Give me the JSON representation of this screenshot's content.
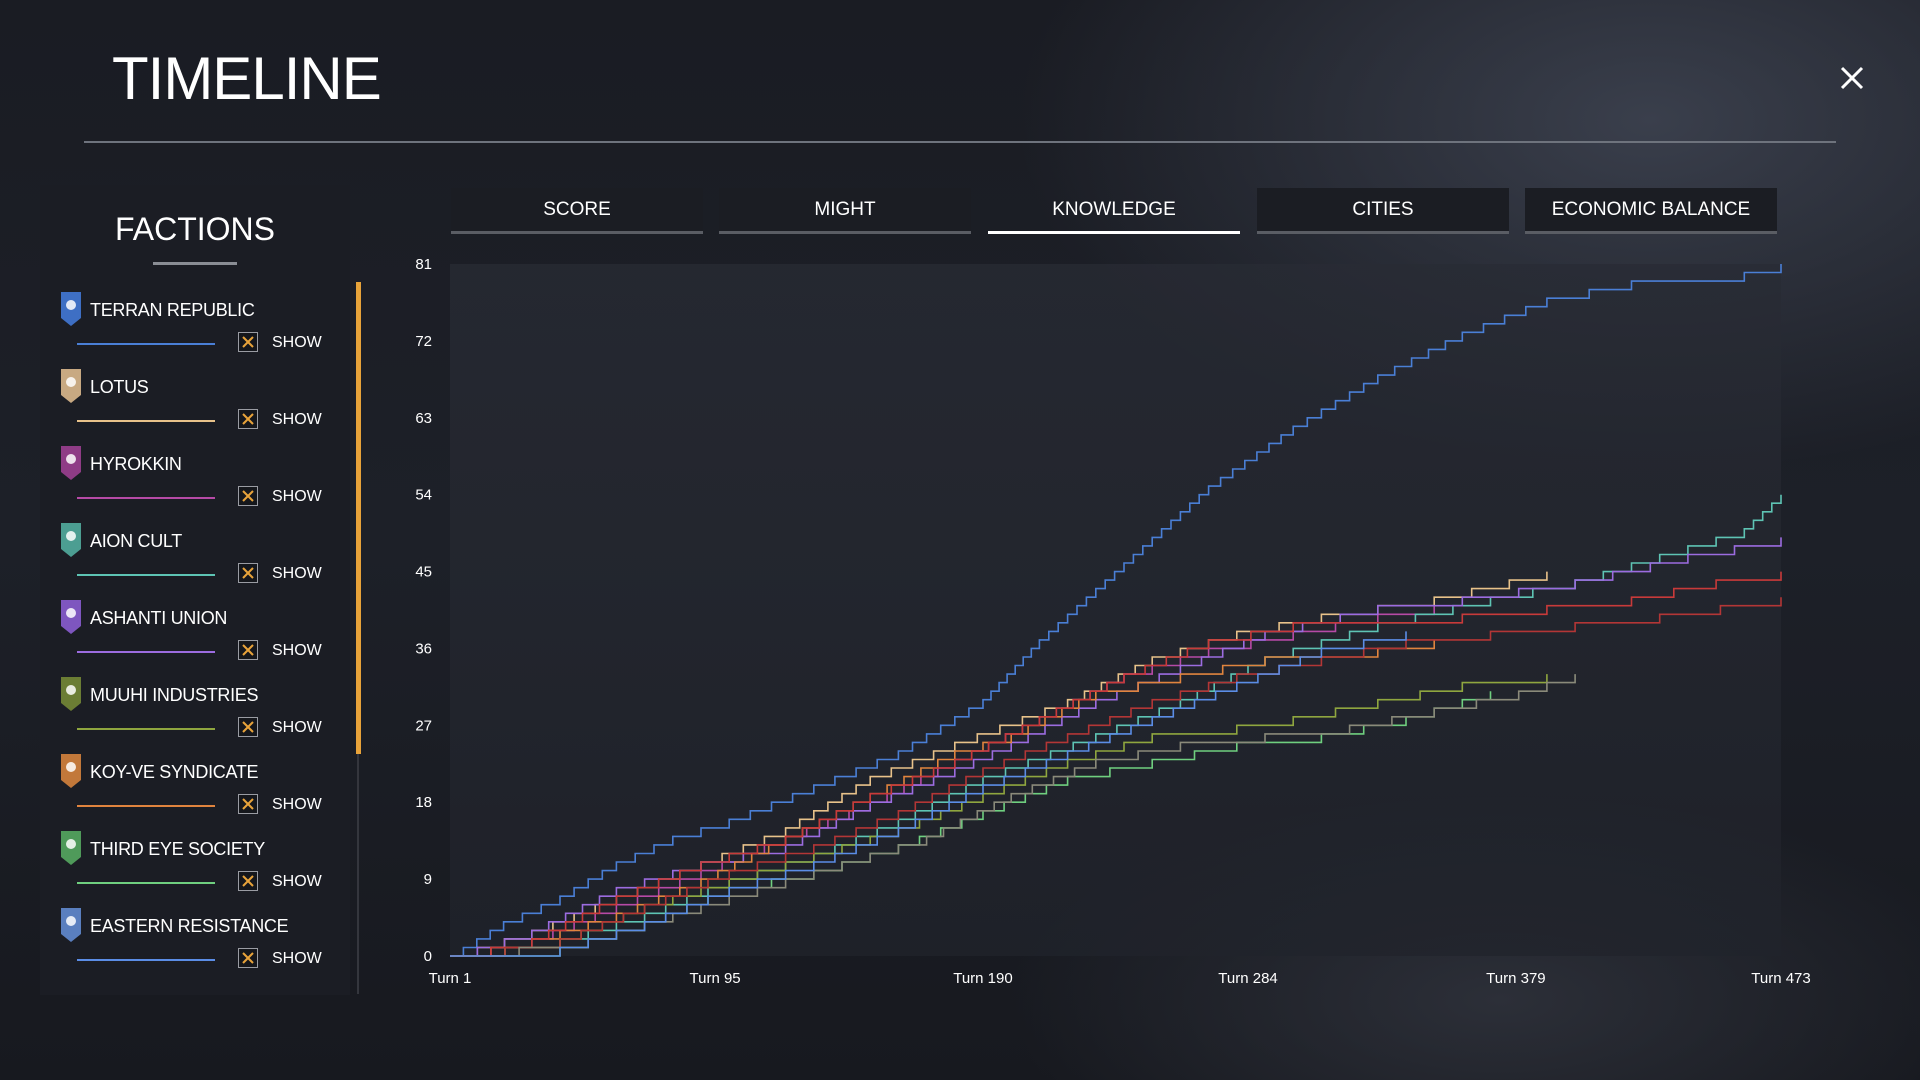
{
  "header": {
    "title": "TIMELINE",
    "close_icon": "close-icon"
  },
  "sidebar": {
    "title": "FACTIONS",
    "show_label": "SHOW",
    "factions": [
      {
        "name": "TERRAN REPUBLIC",
        "color": "#4a7fd6",
        "emblem_color": "#3e6fc4",
        "icon": "terran-emblem-icon",
        "show": true
      },
      {
        "name": "LOTUS",
        "color": "#e8c28a",
        "emblem_color": "#c8a982",
        "icon": "lotus-emblem-icon",
        "show": true
      },
      {
        "name": "HYROKKIN",
        "color": "#b64aa6",
        "emblem_color": "#8f3c86",
        "icon": "hyrokkin-emblem-icon",
        "show": true
      },
      {
        "name": "AION CULT",
        "color": "#5ec4b4",
        "emblem_color": "#4c9e92",
        "icon": "aion-emblem-icon",
        "show": true
      },
      {
        "name": "ASHANTI UNION",
        "color": "#9c6ce0",
        "emblem_color": "#7e56bf",
        "icon": "ashanti-emblem-icon",
        "show": true
      },
      {
        "name": "MUUHI INDUSTRIES",
        "color": "#8fa63f",
        "emblem_color": "#6b7d34",
        "icon": "muuhi-emblem-icon",
        "show": true
      },
      {
        "name": "KOY-VE SYNDICATE",
        "color": "#e0843e",
        "emblem_color": "#c2783a",
        "icon": "koyve-emblem-icon",
        "show": true
      },
      {
        "name": "THIRD EYE SOCIETY",
        "color": "#6fcf7f",
        "emblem_color": "#4f9a5a",
        "icon": "third-eye-emblem-icon",
        "show": true
      },
      {
        "name": "EASTERN RESISTANCE",
        "color": "#5b8de6",
        "emblem_color": "#5a7fbf",
        "icon": "eastern-emblem-icon",
        "show": true
      }
    ]
  },
  "tabs": [
    {
      "label": "SCORE",
      "active": false
    },
    {
      "label": "MIGHT",
      "active": false
    },
    {
      "label": "KNOWLEDGE",
      "active": true
    },
    {
      "label": "CITIES",
      "active": false
    },
    {
      "label": "ECONOMIC BALANCE",
      "active": false
    }
  ],
  "chart_data": {
    "type": "line",
    "title": "",
    "xlabel": "",
    "ylabel": "",
    "ylim": [
      0,
      81
    ],
    "xlim": [
      1,
      473
    ],
    "y_ticks": [
      "0",
      "9",
      "18",
      "27",
      "36",
      "45",
      "54",
      "63",
      "72",
      "81"
    ],
    "x_ticks": [
      {
        "value": 1,
        "label": "Turn 1"
      },
      {
        "value": 95,
        "label": "Turn 95"
      },
      {
        "value": 190,
        "label": "Turn 190"
      },
      {
        "value": 284,
        "label": "Turn 284"
      },
      {
        "value": 379,
        "label": "Turn 379"
      },
      {
        "value": 473,
        "label": "Turn 473"
      }
    ],
    "series": [
      {
        "color": "#4a7fd6",
        "points": [
          [
            1,
            0
          ],
          [
            20,
            4
          ],
          [
            40,
            7
          ],
          [
            60,
            11
          ],
          [
            80,
            14
          ],
          [
            100,
            16
          ],
          [
            130,
            20
          ],
          [
            160,
            24
          ],
          [
            190,
            30
          ],
          [
            210,
            37
          ],
          [
            240,
            46
          ],
          [
            270,
            55
          ],
          [
            300,
            62
          ],
          [
            330,
            68
          ],
          [
            360,
            73
          ],
          [
            390,
            77
          ],
          [
            420,
            79
          ],
          [
            460,
            80
          ],
          [
            473,
            81
          ]
        ]
      },
      {
        "color": "#e8c28a",
        "points": [
          [
            1,
            0
          ],
          [
            30,
            3
          ],
          [
            60,
            7
          ],
          [
            90,
            11
          ],
          [
            120,
            15
          ],
          [
            150,
            21
          ],
          [
            180,
            25
          ],
          [
            220,
            30
          ],
          [
            250,
            35
          ],
          [
            280,
            38
          ],
          [
            310,
            40
          ],
          [
            350,
            42
          ],
          [
            390,
            45
          ]
        ]
      },
      {
        "color": "#b64aa6",
        "points": [
          [
            1,
            0
          ],
          [
            30,
            2
          ],
          [
            60,
            6
          ],
          [
            90,
            10
          ],
          [
            120,
            14
          ],
          [
            150,
            18
          ],
          [
            180,
            23
          ],
          [
            210,
            28
          ],
          [
            240,
            33
          ],
          [
            270,
            36
          ],
          [
            300,
            38
          ],
          [
            330,
            40
          ],
          [
            350,
            41
          ]
        ]
      },
      {
        "color": "#5ec4b4",
        "points": [
          [
            1,
            0
          ],
          [
            40,
            2
          ],
          [
            70,
            5
          ],
          [
            100,
            9
          ],
          [
            130,
            12
          ],
          [
            160,
            16
          ],
          [
            190,
            21
          ],
          [
            230,
            26
          ],
          [
            260,
            30
          ],
          [
            290,
            35
          ],
          [
            330,
            39
          ],
          [
            370,
            42
          ],
          [
            400,
            44
          ],
          [
            430,
            47
          ],
          [
            460,
            50
          ],
          [
            473,
            54
          ]
        ]
      },
      {
        "color": "#9c6ce0",
        "points": [
          [
            1,
            0
          ],
          [
            30,
            3
          ],
          [
            60,
            8
          ],
          [
            90,
            11
          ],
          [
            120,
            13
          ],
          [
            150,
            18
          ],
          [
            180,
            22
          ],
          [
            200,
            25
          ],
          [
            230,
            30
          ],
          [
            260,
            34
          ],
          [
            290,
            38
          ],
          [
            330,
            41
          ],
          [
            360,
            42
          ],
          [
            400,
            44
          ],
          [
            440,
            47
          ],
          [
            473,
            49
          ]
        ]
      },
      {
        "color": "#8fa63f",
        "points": [
          [
            1,
            0
          ],
          [
            40,
            2
          ],
          [
            70,
            6
          ],
          [
            100,
            9
          ],
          [
            130,
            12
          ],
          [
            160,
            15
          ],
          [
            190,
            19
          ],
          [
            220,
            23
          ],
          [
            250,
            26
          ],
          [
            280,
            27
          ],
          [
            300,
            28
          ],
          [
            330,
            30
          ],
          [
            360,
            32
          ],
          [
            390,
            33
          ]
        ]
      },
      {
        "color": "#e0843e",
        "points": [
          [
            1,
            0
          ],
          [
            30,
            2
          ],
          [
            60,
            5
          ],
          [
            90,
            9
          ],
          [
            120,
            14
          ],
          [
            150,
            19
          ],
          [
            180,
            24
          ],
          [
            200,
            26
          ],
          [
            230,
            31
          ],
          [
            260,
            33
          ],
          [
            290,
            35
          ],
          [
            330,
            36
          ],
          [
            350,
            37
          ]
        ]
      },
      {
        "color": "#6fcf7f",
        "points": [
          [
            1,
            0
          ],
          [
            40,
            1
          ],
          [
            70,
            4
          ],
          [
            100,
            8
          ],
          [
            130,
            10
          ],
          [
            160,
            13
          ],
          [
            190,
            17
          ],
          [
            220,
            21
          ],
          [
            250,
            23
          ],
          [
            280,
            25
          ],
          [
            310,
            26
          ],
          [
            340,
            28
          ],
          [
            360,
            30
          ],
          [
            370,
            31
          ]
        ]
      },
      {
        "color": "#c83a3a",
        "points": [
          [
            1,
            0
          ],
          [
            30,
            2
          ],
          [
            60,
            7
          ],
          [
            90,
            11
          ],
          [
            120,
            14
          ],
          [
            150,
            19
          ],
          [
            180,
            23
          ],
          [
            210,
            28
          ],
          [
            240,
            33
          ],
          [
            270,
            37
          ],
          [
            300,
            39
          ],
          [
            330,
            39
          ],
          [
            360,
            40
          ],
          [
            390,
            41
          ],
          [
            420,
            42
          ],
          [
            450,
            44
          ],
          [
            473,
            45
          ]
        ]
      },
      {
        "color": "#b33636",
        "points": [
          [
            1,
            0
          ],
          [
            40,
            2
          ],
          [
            70,
            6
          ],
          [
            100,
            10
          ],
          [
            130,
            13
          ],
          [
            160,
            17
          ],
          [
            190,
            22
          ],
          [
            220,
            26
          ],
          [
            250,
            30
          ],
          [
            280,
            33
          ],
          [
            310,
            35
          ],
          [
            340,
            37
          ],
          [
            370,
            38
          ],
          [
            400,
            39
          ],
          [
            430,
            40
          ],
          [
            473,
            42
          ]
        ]
      },
      {
        "color": "#8a8a7a",
        "points": [
          [
            1,
            0
          ],
          [
            50,
            2
          ],
          [
            80,
            5
          ],
          [
            110,
            8
          ],
          [
            140,
            11
          ],
          [
            170,
            14
          ],
          [
            200,
            19
          ],
          [
            230,
            23
          ],
          [
            260,
            25
          ],
          [
            290,
            26
          ],
          [
            320,
            27
          ],
          [
            350,
            29
          ],
          [
            380,
            31
          ],
          [
            400,
            33
          ]
        ]
      },
      {
        "color": "#5b8de6",
        "points": [
          [
            1,
            0
          ],
          [
            40,
            1
          ],
          [
            70,
            4
          ],
          [
            100,
            8
          ],
          [
            130,
            11
          ],
          [
            160,
            15
          ],
          [
            190,
            20
          ],
          [
            220,
            24
          ],
          [
            250,
            28
          ],
          [
            280,
            32
          ],
          [
            310,
            36
          ],
          [
            340,
            38
          ]
        ]
      }
    ]
  }
}
